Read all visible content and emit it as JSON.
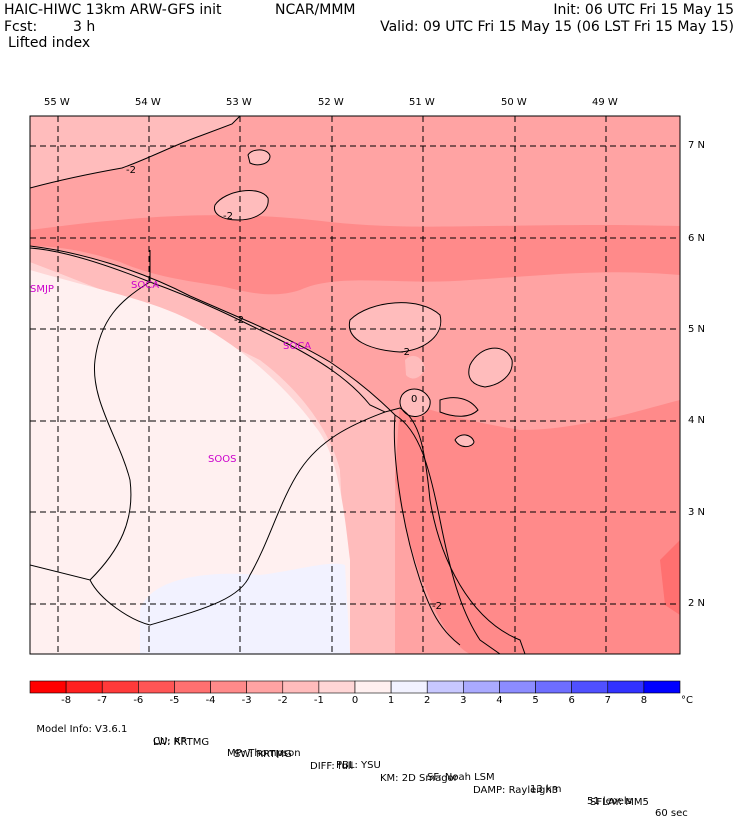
{
  "header": {
    "model_title": "HAIC-HIWC 13km ARW-GFS init",
    "institution": "NCAR/MMM",
    "init_time": "Init: 06 UTC Fri 15 May 15",
    "forecast_label": "Fcst:",
    "forecast_hours": "3 h",
    "valid_time": "Valid: 09 UTC Fri 15 May 15 (06 LST Fri 15 May 15)",
    "field_name": "Lifted index"
  },
  "map": {
    "lon_labels": [
      "55 W",
      "54 W",
      "53 W",
      "52 W",
      "51 W",
      "50 W",
      "49 W"
    ],
    "lat_labels": [
      "7 N",
      "6 N",
      "5 N",
      "4 N",
      "3 N",
      "2 N"
    ],
    "contour_labels": [
      "-2",
      "-2",
      "-2",
      "-2",
      "-2",
      "0"
    ],
    "stations": [
      "SMJP",
      "SOCA",
      "SOCA",
      "SOOS"
    ]
  },
  "colorbar": {
    "colors": [
      "#ff0000",
      "#ff2020",
      "#ff3a3a",
      "#ff5555",
      "#ff7070",
      "#ff8a8a",
      "#ffa3a3",
      "#ffbcbc",
      "#ffd6d6",
      "#fff0f0",
      "#f2f2ff",
      "#c8c8ff",
      "#aaaaff",
      "#8c8cff",
      "#6e6eff",
      "#5050ff",
      "#3232ff",
      "#0000ff"
    ],
    "tick_labels": [
      "-8",
      "-7",
      "-6",
      "-5",
      "-4",
      "-3",
      "-2",
      "-1",
      "0",
      "1",
      "2",
      "3",
      "4",
      "5",
      "6",
      "7",
      "8"
    ],
    "unit": "°C"
  },
  "model_info": {
    "line1": [
      "Model Info: V3.6.1",
      "CU: KF",
      "MP: Thompson",
      "PBL: YSU",
      "SF: Noah LSM",
      "13 km",
      "51 levels",
      "60 sec"
    ],
    "line2": [
      "LW: RRTMG",
      "SW: RRTMG",
      "DIFF: full",
      "KM: 2D Smagor",
      "DAMP: Rayleigh3",
      "SFLAY: MM5"
    ]
  }
}
